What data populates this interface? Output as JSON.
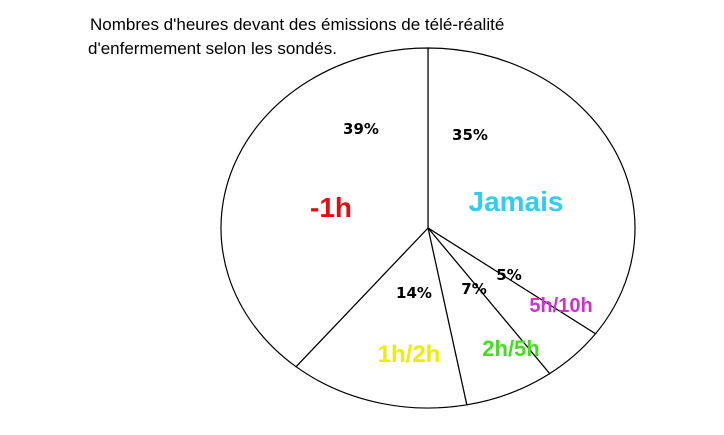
{
  "chart_data": {
    "type": "pie",
    "title_lines": [
      "Nombres d'heures devant des émissions de télé-réalité",
      "d'enfermement selon les sondés."
    ],
    "slices": [
      {
        "label": "Jamais",
        "value": 35,
        "value_label": "35%",
        "color": "#33ccee"
      },
      {
        "label": "5h/10h",
        "value": 5,
        "value_label": "5%",
        "color": "#cc33cc"
      },
      {
        "label": "2h/5h",
        "value": 7,
        "value_label": "7%",
        "color": "#44dd22"
      },
      {
        "label": "1h/2h",
        "value": 14,
        "value_label": "14%",
        "color": "#eeee00"
      },
      {
        "label": "-1h",
        "value": 39,
        "value_label": "39%",
        "color": "#dd1111"
      }
    ],
    "legend": "none",
    "grid": false
  }
}
